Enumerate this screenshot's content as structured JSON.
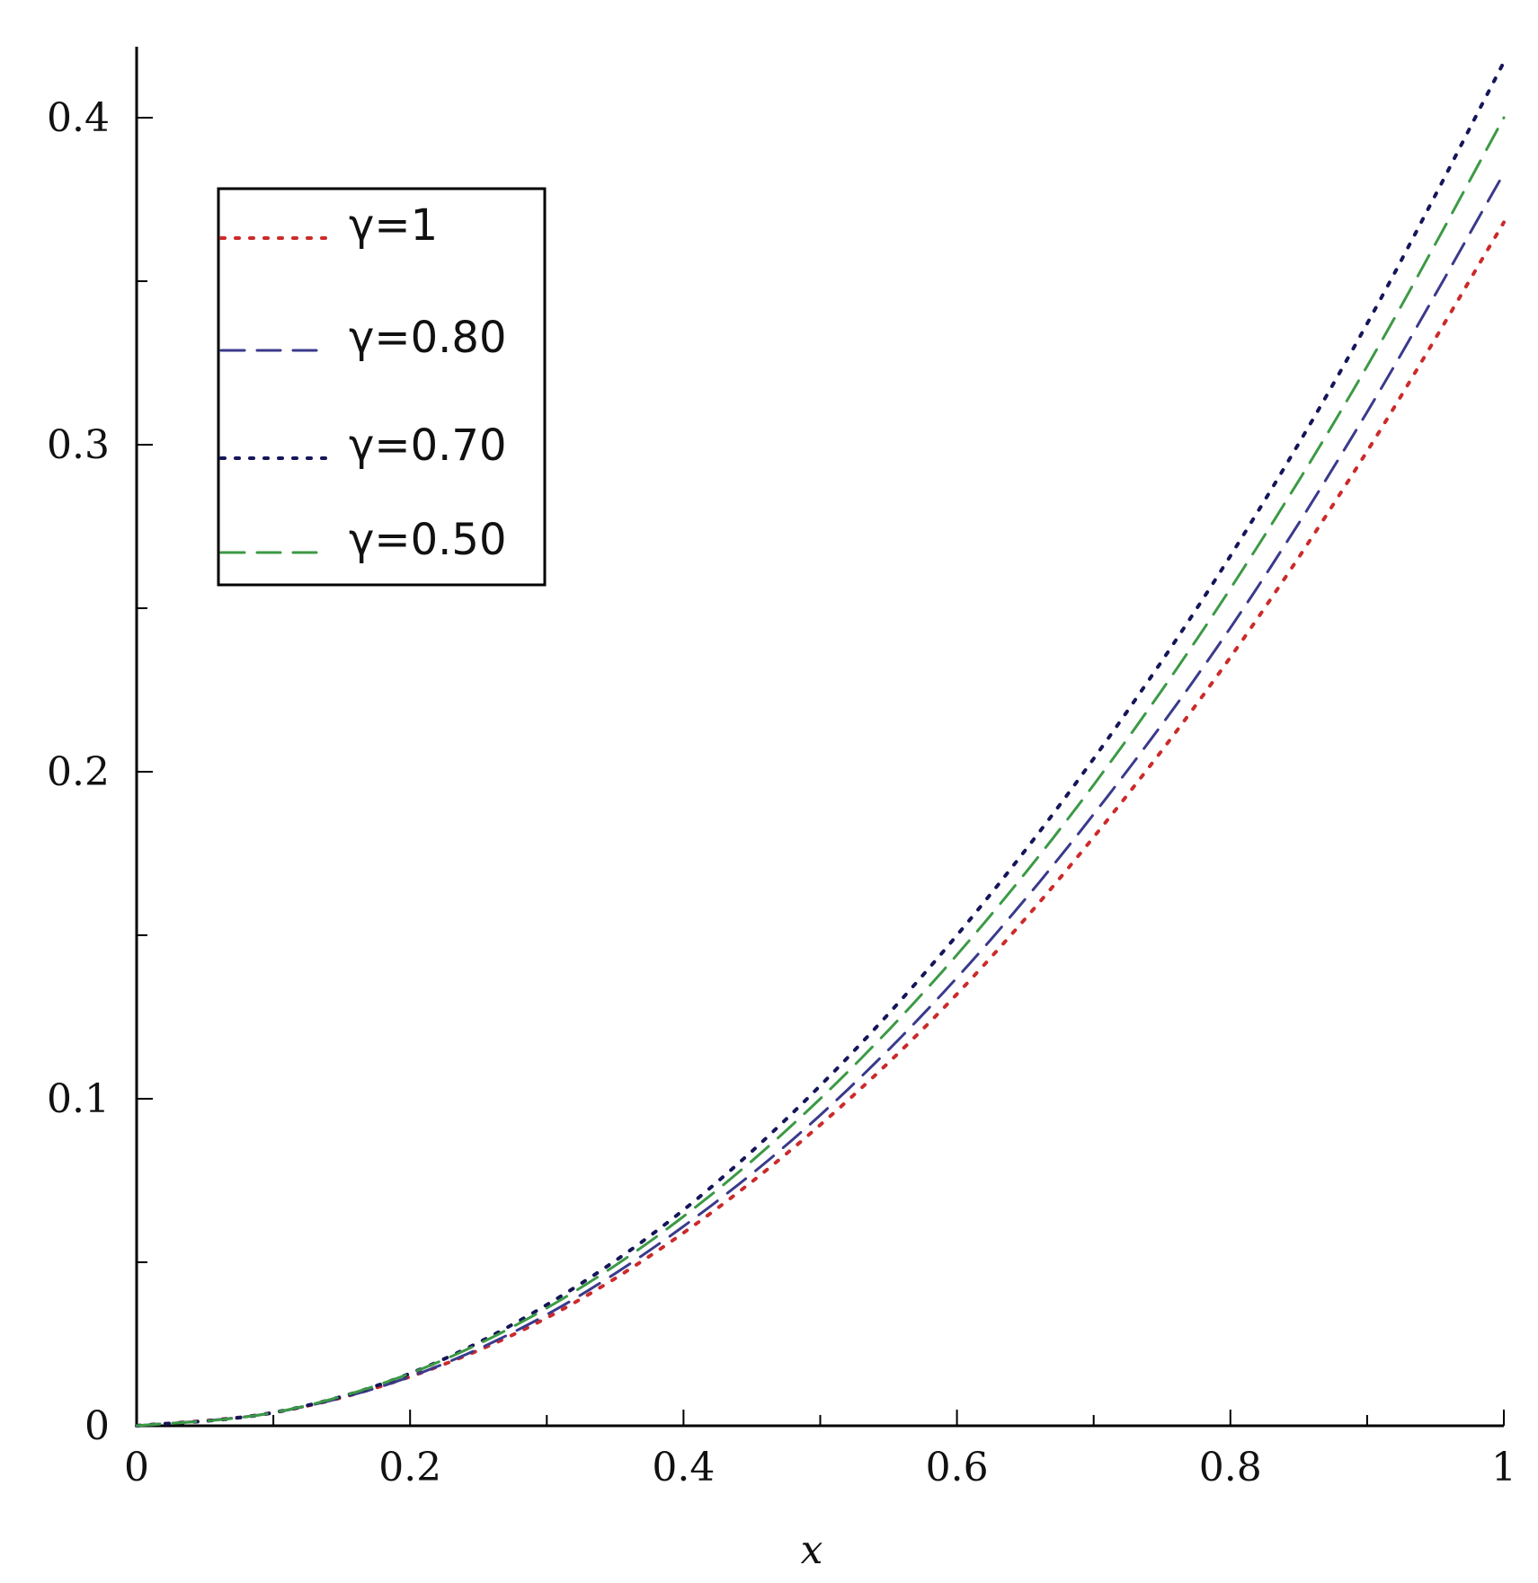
{
  "chart_data": {
    "type": "line",
    "title": "",
    "xlabel": "x",
    "ylabel": "",
    "xlim": [
      0,
      1
    ],
    "ylim": [
      0,
      0.42
    ],
    "x_ticks": [
      "0",
      "0.2",
      "0.4",
      "0.6",
      "0.8",
      "1"
    ],
    "y_ticks": [
      "0",
      "0.1",
      "0.2",
      "0.3",
      "0.4"
    ],
    "grid": false,
    "legend_position": "top-left",
    "x": [
      0,
      0.1,
      0.2,
      0.3,
      0.4,
      0.5,
      0.6,
      0.7,
      0.8,
      0.9,
      1
    ],
    "series": [
      {
        "name": "γ=1",
        "color": "#cc2a2a",
        "dash": "dotted",
        "values": [
          0,
          0.004,
          0.015,
          0.033,
          0.059,
          0.092,
          0.132,
          0.18,
          0.235,
          0.298,
          0.368
        ]
      },
      {
        "name": "γ=0.80",
        "color": "#3a3a8c",
        "dash": "dashed",
        "values": [
          0,
          0.004,
          0.015,
          0.034,
          0.061,
          0.095,
          0.137,
          0.187,
          0.244,
          0.31,
          0.383
        ]
      },
      {
        "name": "γ=0.70",
        "color": "#15155a",
        "dash": "dotted",
        "values": [
          0,
          0.004,
          0.016,
          0.037,
          0.066,
          0.104,
          0.15,
          0.204,
          0.266,
          0.337,
          0.417
        ]
      },
      {
        "name": "γ=0.50",
        "color": "#3c9a45",
        "dash": "dashed",
        "values": [
          0,
          0.004,
          0.016,
          0.036,
          0.064,
          0.1,
          0.144,
          0.196,
          0.256,
          0.324,
          0.4
        ]
      }
    ]
  }
}
